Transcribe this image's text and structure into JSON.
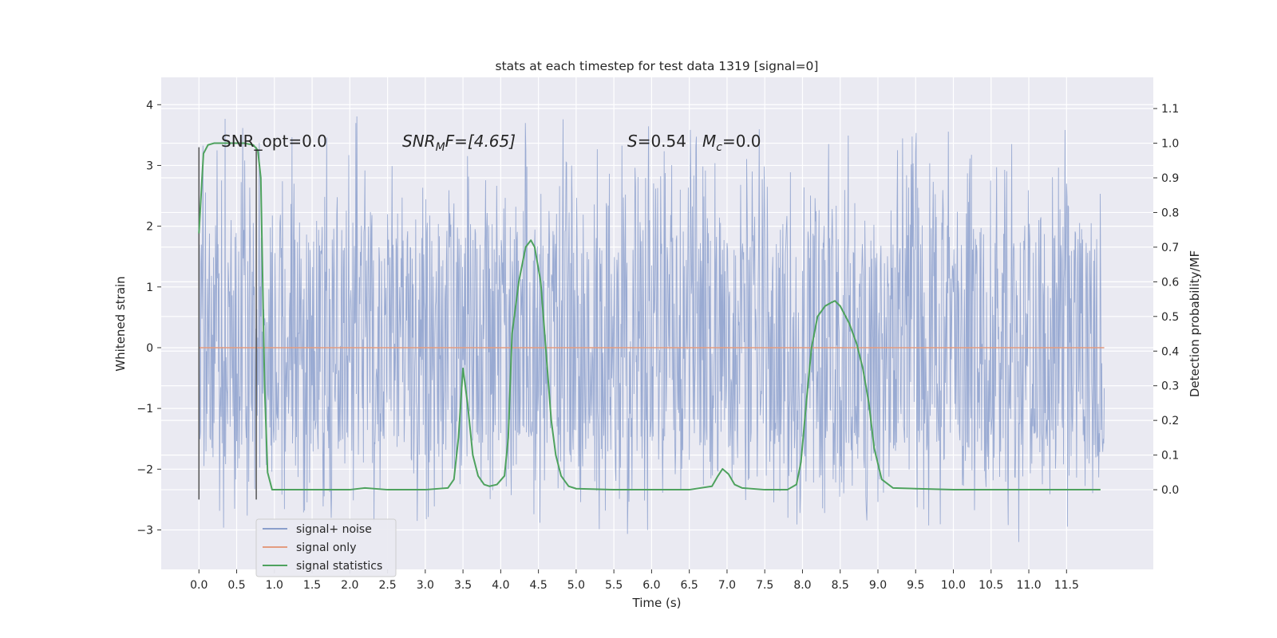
{
  "chart_data": {
    "type": "line",
    "title": "stats at each timestep for test data 1319 [signal=0]",
    "xlabel": "Time (s)",
    "ylabel": "Whitened strain",
    "y2label": "Detection probability/MF",
    "xlim": [
      -0.5,
      12.65
    ],
    "ylim": [
      -3.65,
      4.45
    ],
    "y2lim": [
      -0.23,
      1.19
    ],
    "x_ticks": [
      "0.0",
      "0.5",
      "1.0",
      "1.5",
      "2.0",
      "2.5",
      "3.0",
      "3.5",
      "4.0",
      "4.5",
      "5.0",
      "5.5",
      "6.0",
      "6.5",
      "7.0",
      "7.5",
      "8.0",
      "8.5",
      "9.0",
      "9.5",
      "10.0",
      "10.5",
      "11.0",
      "11.5"
    ],
    "y_ticks": [
      "4",
      "3",
      "2",
      "1",
      "0",
      "−1",
      "−2",
      "−3"
    ],
    "y2_ticks": [
      "1.1",
      "1.0",
      "0.9",
      "0.8",
      "0.7",
      "0.6",
      "0.5",
      "0.4",
      "0.3",
      "0.2",
      "0.1",
      "0.0"
    ],
    "grid": true,
    "legend_position": "bottom-left",
    "colors": {
      "noise": "#8b9fcc",
      "signal_only": "#e39c80",
      "statistics": "#4ea25e",
      "background": "#eaeaf2",
      "grid": "#ffffff",
      "marker": "#555555"
    },
    "annotations": {
      "snr_opt": "SNR_opt=0.0",
      "snr_mf_base": "SNR",
      "snr_mf_sub": "M",
      "snr_mf_rest": "F=[4.65]",
      "s_label": "S",
      "s_value": "=0.54",
      "mc_base": "M",
      "mc_sub": "c",
      "mc_value": "=0.0"
    },
    "markers_x": [
      0.0,
      0.76
    ],
    "series": [
      {
        "name": "signal+ noise",
        "axis": "left",
        "x_range": [
          0.0,
          12.0
        ],
        "body_envelope": [
          -1.35,
          1.55
        ],
        "y_extremes": [
          -3.25,
          4.1
        ]
      },
      {
        "name": "signal only",
        "axis": "left",
        "x": [
          0.0,
          12.0
        ],
        "y": [
          0.0,
          0.0
        ]
      },
      {
        "name": "signal statistics",
        "axis": "right",
        "x": [
          0.0,
          0.06,
          0.12,
          0.2,
          0.3,
          0.45,
          0.6,
          0.72,
          0.78,
          0.82,
          0.87,
          0.91,
          0.97,
          1.05,
          1.5,
          2.0,
          2.2,
          2.5,
          3.0,
          3.3,
          3.38,
          3.44,
          3.5,
          3.56,
          3.63,
          3.7,
          3.78,
          3.85,
          3.95,
          4.05,
          4.1,
          4.15,
          4.24,
          4.33,
          4.4,
          4.45,
          4.53,
          4.6,
          4.67,
          4.73,
          4.8,
          4.9,
          5.0,
          5.5,
          6.0,
          6.5,
          6.8,
          6.88,
          6.94,
          7.02,
          7.1,
          7.2,
          7.5,
          7.8,
          7.92,
          7.98,
          8.05,
          8.12,
          8.2,
          8.3,
          8.38,
          8.43,
          8.5,
          8.62,
          8.72,
          8.8,
          8.88,
          8.95,
          9.05,
          9.2,
          10.0,
          11.0,
          11.95
        ],
        "y": [
          0.74,
          0.97,
          0.995,
          1.0,
          1.0,
          1.0,
          1.0,
          0.995,
          0.98,
          0.9,
          0.3,
          0.05,
          0.0,
          0.0,
          0.0,
          0.0,
          0.005,
          0.0,
          0.0,
          0.005,
          0.03,
          0.15,
          0.35,
          0.25,
          0.1,
          0.04,
          0.015,
          0.01,
          0.015,
          0.04,
          0.15,
          0.45,
          0.6,
          0.7,
          0.72,
          0.7,
          0.6,
          0.4,
          0.2,
          0.1,
          0.04,
          0.01,
          0.003,
          0.0,
          0.0,
          0.0,
          0.01,
          0.04,
          0.06,
          0.045,
          0.015,
          0.005,
          0.0,
          0.0,
          0.015,
          0.08,
          0.25,
          0.41,
          0.5,
          0.53,
          0.54,
          0.545,
          0.53,
          0.48,
          0.42,
          0.35,
          0.25,
          0.12,
          0.03,
          0.005,
          0.0,
          0.0,
          0.0
        ]
      }
    ]
  }
}
